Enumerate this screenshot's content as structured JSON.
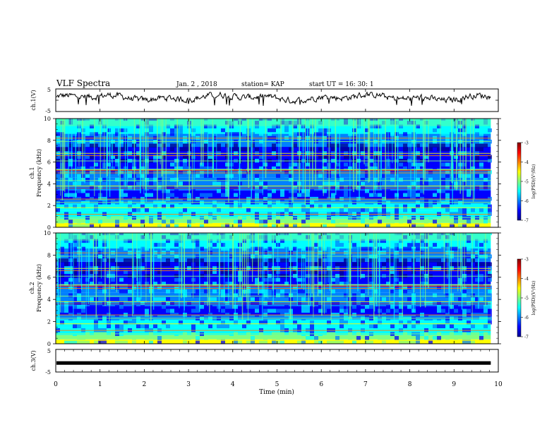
{
  "header": {
    "title": "VLF Spectra",
    "date": "Jan. 2 , 2018",
    "station": "station= KAP",
    "start": "start UT = 16: 30: 1"
  },
  "chart_data": [
    {
      "type": "line",
      "name": "ch1-waveform",
      "ylabel": "ch.1(V)",
      "ylim": [
        -5,
        5
      ],
      "yticks": [
        "5",
        "-5"
      ],
      "xlim": [
        0,
        10
      ],
      "note": "noisy waveform, roughly between +2.5 and -1 V"
    },
    {
      "type": "heatmap",
      "name": "ch1-spectrogram",
      "ylabel_top": "ch.1",
      "ylabel": "Frequency (kHz)",
      "ylim": [
        0,
        10
      ],
      "yticks": [
        "0",
        "2",
        "4",
        "6",
        "8",
        "10"
      ],
      "xlim": [
        0,
        10
      ],
      "colorbar": {
        "label": "log(PSD)(V²/Hz)",
        "range": [
          -7,
          -3
        ],
        "ticks": [
          "-3",
          "-4",
          "-5",
          "-6",
          "-7"
        ]
      }
    },
    {
      "type": "heatmap",
      "name": "ch2-spectrogram",
      "ylabel_top": "ch.2",
      "ylabel": "Frequency (kHz)",
      "ylim": [
        0,
        10
      ],
      "yticks": [
        "0",
        "2",
        "4",
        "6",
        "8",
        "10"
      ],
      "xlim": [
        0,
        10
      ],
      "colorbar": {
        "label": "log(PSD)(V²/Hz)",
        "range": [
          -7,
          -3
        ],
        "ticks": [
          "-3",
          "-4",
          "-5",
          "-6",
          "-7"
        ]
      }
    },
    {
      "type": "line",
      "name": "ch3-waveform",
      "ylabel": "ch.3(V)",
      "ylim": [
        -5,
        5
      ],
      "yticks": [
        "5",
        "-5"
      ],
      "xlim": [
        0,
        10
      ],
      "values": [
        -1,
        -1
      ]
    }
  ],
  "xaxis": {
    "label": "Time (min)",
    "ticks": [
      "0",
      "1",
      "2",
      "3",
      "4",
      "5",
      "6",
      "7",
      "8",
      "9",
      "10"
    ],
    "data_end": 9.83
  },
  "colors": {
    "jet": [
      "#00008f",
      "#0000ff",
      "#0080ff",
      "#00ffff",
      "#80ff80",
      "#ffff00",
      "#ff8000",
      "#ff0000",
      "#800000"
    ],
    "line": "#000000",
    "frame": "#000000"
  }
}
